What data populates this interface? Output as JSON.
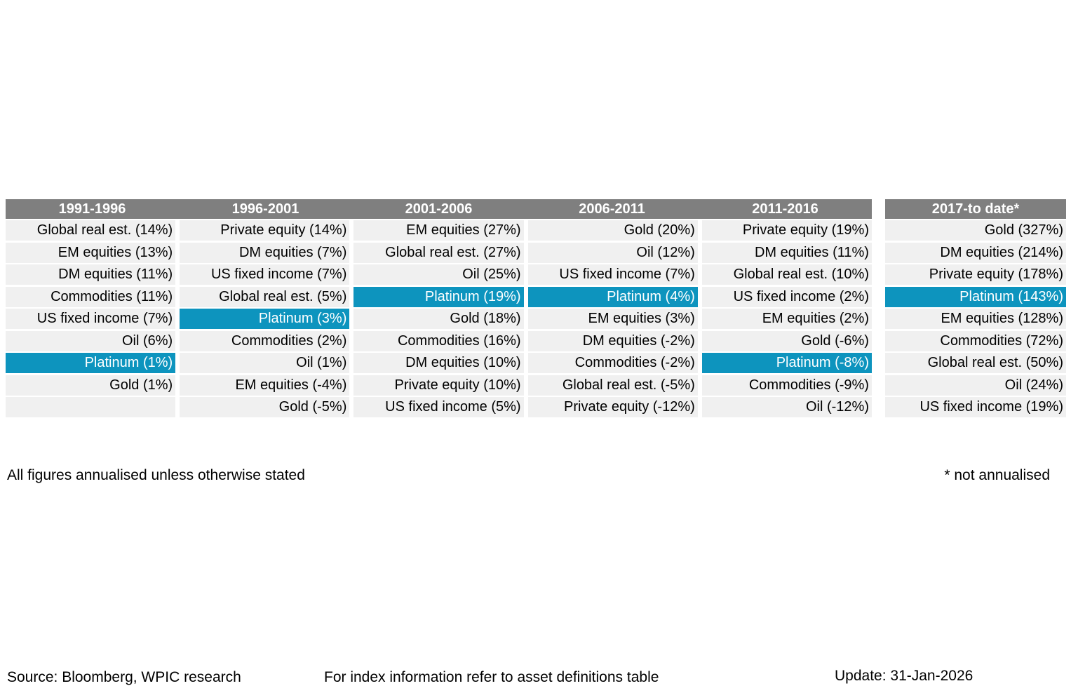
{
  "colors": {
    "header_bg": "#7f7f7f",
    "row_bg": "#f0f0f0",
    "highlight": "#0d94be"
  },
  "notes": {
    "left": "All figures annualised unless otherwise stated",
    "right": "* not annualised"
  },
  "footer": {
    "source": "Source: Bloomberg, WPIC research",
    "index_info": "For index information refer to asset definitions table",
    "update": "Update: 31-Jan-2026"
  },
  "chart_data": {
    "type": "table",
    "description": "Asset class returns ranked best-to-worst within each period; Platinum highlighted",
    "legend_highlight": "Platinum",
    "columns": [
      {
        "period": "1991-1996",
        "entries": [
          {
            "asset": "Global real est.",
            "value_pct": 14,
            "label": "Global real est. (14%)",
            "highlight": false
          },
          {
            "asset": "EM equities",
            "value_pct": 13,
            "label": "EM equities (13%)",
            "highlight": false
          },
          {
            "asset": "DM equities",
            "value_pct": 11,
            "label": "DM equities (11%)",
            "highlight": false
          },
          {
            "asset": "Commodities",
            "value_pct": 11,
            "label": "Commodities (11%)",
            "highlight": false
          },
          {
            "asset": "US fixed income",
            "value_pct": 7,
            "label": "US fixed income (7%)",
            "highlight": false
          },
          {
            "asset": "Oil",
            "value_pct": 6,
            "label": "Oil (6%)",
            "highlight": false
          },
          {
            "asset": "Platinum",
            "value_pct": 1,
            "label": "Platinum (1%)",
            "highlight": true
          },
          {
            "asset": "Gold",
            "value_pct": 1,
            "label": "Gold (1%)",
            "highlight": false
          },
          {
            "asset": "",
            "value_pct": null,
            "label": "",
            "highlight": false
          }
        ]
      },
      {
        "period": "1996-2001",
        "entries": [
          {
            "asset": "Private equity",
            "value_pct": 14,
            "label": "Private equity (14%)",
            "highlight": false
          },
          {
            "asset": "DM equities",
            "value_pct": 7,
            "label": "DM equities (7%)",
            "highlight": false
          },
          {
            "asset": "US fixed income",
            "value_pct": 7,
            "label": "US fixed income (7%)",
            "highlight": false
          },
          {
            "asset": "Global real est.",
            "value_pct": 5,
            "label": "Global real est. (5%)",
            "highlight": false
          },
          {
            "asset": "Platinum",
            "value_pct": 3,
            "label": "Platinum (3%)",
            "highlight": true
          },
          {
            "asset": "Commodities",
            "value_pct": 2,
            "label": "Commodities (2%)",
            "highlight": false
          },
          {
            "asset": "Oil",
            "value_pct": 1,
            "label": "Oil (1%)",
            "highlight": false
          },
          {
            "asset": "EM equities",
            "value_pct": -4,
            "label": "EM equities (-4%)",
            "highlight": false
          },
          {
            "asset": "Gold",
            "value_pct": -5,
            "label": "Gold (-5%)",
            "highlight": false
          }
        ]
      },
      {
        "period": "2001-2006",
        "entries": [
          {
            "asset": "EM equities",
            "value_pct": 27,
            "label": "EM equities (27%)",
            "highlight": false
          },
          {
            "asset": "Global real est.",
            "value_pct": 27,
            "label": "Global real est. (27%)",
            "highlight": false
          },
          {
            "asset": "Oil",
            "value_pct": 25,
            "label": "Oil (25%)",
            "highlight": false
          },
          {
            "asset": "Platinum",
            "value_pct": 19,
            "label": "Platinum (19%)",
            "highlight": true
          },
          {
            "asset": "Gold",
            "value_pct": 18,
            "label": "Gold (18%)",
            "highlight": false
          },
          {
            "asset": "Commodities",
            "value_pct": 16,
            "label": "Commodities (16%)",
            "highlight": false
          },
          {
            "asset": "DM equities",
            "value_pct": 10,
            "label": "DM equities (10%)",
            "highlight": false
          },
          {
            "asset": "Private equity",
            "value_pct": 10,
            "label": "Private equity (10%)",
            "highlight": false
          },
          {
            "asset": "US fixed income",
            "value_pct": 5,
            "label": "US fixed income (5%)",
            "highlight": false
          }
        ]
      },
      {
        "period": "2006-2011",
        "entries": [
          {
            "asset": "Gold",
            "value_pct": 20,
            "label": "Gold (20%)",
            "highlight": false
          },
          {
            "asset": "Oil",
            "value_pct": 12,
            "label": "Oil (12%)",
            "highlight": false
          },
          {
            "asset": "US fixed income",
            "value_pct": 7,
            "label": "US fixed income (7%)",
            "highlight": false
          },
          {
            "asset": "Platinum",
            "value_pct": 4,
            "label": "Platinum (4%)",
            "highlight": true
          },
          {
            "asset": "EM equities",
            "value_pct": 3,
            "label": "EM equities (3%)",
            "highlight": false
          },
          {
            "asset": "DM equities",
            "value_pct": -2,
            "label": "DM equities (-2%)",
            "highlight": false
          },
          {
            "asset": "Commodities",
            "value_pct": -2,
            "label": "Commodities (-2%)",
            "highlight": false
          },
          {
            "asset": "Global real est.",
            "value_pct": -5,
            "label": "Global real est. (-5%)",
            "highlight": false
          },
          {
            "asset": "Private equity",
            "value_pct": -12,
            "label": "Private equity (-12%)",
            "highlight": false
          }
        ]
      },
      {
        "period": "2011-2016",
        "entries": [
          {
            "asset": "Private equity",
            "value_pct": 19,
            "label": "Private equity (19%)",
            "highlight": false
          },
          {
            "asset": "DM equities",
            "value_pct": 11,
            "label": "DM equities (11%)",
            "highlight": false
          },
          {
            "asset": "Global real est.",
            "value_pct": 10,
            "label": "Global real est. (10%)",
            "highlight": false
          },
          {
            "asset": "US fixed income",
            "value_pct": 2,
            "label": "US fixed income (2%)",
            "highlight": false
          },
          {
            "asset": "EM equities",
            "value_pct": 2,
            "label": "EM equities (2%)",
            "highlight": false
          },
          {
            "asset": "Gold",
            "value_pct": -6,
            "label": "Gold (-6%)",
            "highlight": false
          },
          {
            "asset": "Platinum",
            "value_pct": -8,
            "label": "Platinum (-8%)",
            "highlight": true
          },
          {
            "asset": "Commodities",
            "value_pct": -9,
            "label": "Commodities (-9%)",
            "highlight": false
          },
          {
            "asset": "Oil",
            "value_pct": -12,
            "label": "Oil (-12%)",
            "highlight": false
          }
        ]
      },
      {
        "period": "2017-to date*",
        "entries": [
          {
            "asset": "Gold",
            "value_pct": 327,
            "label": "Gold (327%)",
            "highlight": false
          },
          {
            "asset": "DM equities",
            "value_pct": 214,
            "label": "DM equities (214%)",
            "highlight": false
          },
          {
            "asset": "Private equity",
            "value_pct": 178,
            "label": "Private equity (178%)",
            "highlight": false
          },
          {
            "asset": "Platinum",
            "value_pct": 143,
            "label": "Platinum (143%)",
            "highlight": true
          },
          {
            "asset": "EM equities",
            "value_pct": 128,
            "label": "EM equities (128%)",
            "highlight": false
          },
          {
            "asset": "Commodities",
            "value_pct": 72,
            "label": "Commodities (72%)",
            "highlight": false
          },
          {
            "asset": "Global real est.",
            "value_pct": 50,
            "label": "Global real est. (50%)",
            "highlight": false
          },
          {
            "asset": "Oil",
            "value_pct": 24,
            "label": "Oil (24%)",
            "highlight": false
          },
          {
            "asset": "US fixed income",
            "value_pct": 19,
            "label": "US fixed income (19%)",
            "highlight": false
          }
        ]
      }
    ]
  }
}
